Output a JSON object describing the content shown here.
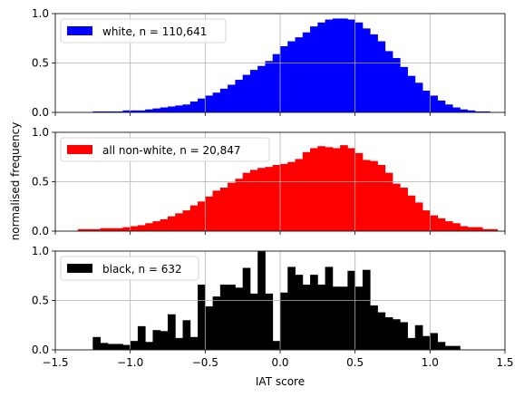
{
  "chart_data": [
    {
      "type": "bar",
      "legend": "white, n = 110,641",
      "color": "#0000ff",
      "legend_loc": "upper-left",
      "xlim": [
        -1.5,
        1.5
      ],
      "ylim": [
        0,
        1
      ],
      "grid": true,
      "bin_width": 0.05,
      "x": [
        -1.25,
        -1.2,
        -1.15,
        -1.1,
        -1.05,
        -1.0,
        -0.95,
        -0.9,
        -0.85,
        -0.8,
        -0.75,
        -0.7,
        -0.65,
        -0.6,
        -0.55,
        -0.5,
        -0.45,
        -0.4,
        -0.35,
        -0.3,
        -0.25,
        -0.2,
        -0.15,
        -0.1,
        -0.05,
        0.0,
        0.05,
        0.1,
        0.15,
        0.2,
        0.25,
        0.3,
        0.35,
        0.4,
        0.45,
        0.5,
        0.55,
        0.6,
        0.65,
        0.7,
        0.75,
        0.8,
        0.85,
        0.9,
        0.95,
        1.0,
        1.05,
        1.1,
        1.15,
        1.2,
        1.25,
        1.3,
        1.35,
        1.4,
        1.45
      ],
      "values": [
        0.01,
        0.01,
        0.01,
        0.01,
        0.02,
        0.02,
        0.02,
        0.03,
        0.04,
        0.05,
        0.06,
        0.07,
        0.08,
        0.11,
        0.14,
        0.17,
        0.2,
        0.24,
        0.28,
        0.33,
        0.38,
        0.43,
        0.47,
        0.52,
        0.59,
        0.67,
        0.72,
        0.76,
        0.81,
        0.87,
        0.91,
        0.94,
        0.95,
        0.95,
        0.94,
        0.91,
        0.85,
        0.79,
        0.72,
        0.62,
        0.55,
        0.46,
        0.37,
        0.3,
        0.22,
        0.17,
        0.12,
        0.08,
        0.05,
        0.03,
        0.02,
        0.01,
        0.01,
        0.0,
        0.0
      ]
    },
    {
      "type": "bar",
      "legend": "all non-white, n = 20,847",
      "color": "#ff0000",
      "legend_loc": "upper-left",
      "xlim": [
        -1.5,
        1.5
      ],
      "ylim": [
        0,
        1
      ],
      "grid": true,
      "bin_width": 0.05,
      "x": [
        -1.35,
        -1.3,
        -1.25,
        -1.2,
        -1.15,
        -1.1,
        -1.05,
        -1.0,
        -0.95,
        -0.9,
        -0.85,
        -0.8,
        -0.75,
        -0.7,
        -0.65,
        -0.6,
        -0.55,
        -0.5,
        -0.45,
        -0.4,
        -0.35,
        -0.3,
        -0.25,
        -0.2,
        -0.15,
        -0.1,
        -0.05,
        0.0,
        0.05,
        0.1,
        0.15,
        0.2,
        0.25,
        0.3,
        0.35,
        0.4,
        0.45,
        0.5,
        0.55,
        0.6,
        0.65,
        0.7,
        0.75,
        0.8,
        0.85,
        0.9,
        0.95,
        1.0,
        1.05,
        1.1,
        1.15,
        1.2,
        1.25,
        1.3,
        1.35,
        1.4
      ],
      "values": [
        0.02,
        0.02,
        0.02,
        0.03,
        0.03,
        0.03,
        0.04,
        0.05,
        0.06,
        0.08,
        0.1,
        0.12,
        0.15,
        0.18,
        0.21,
        0.26,
        0.3,
        0.35,
        0.41,
        0.44,
        0.49,
        0.53,
        0.59,
        0.62,
        0.64,
        0.65,
        0.67,
        0.68,
        0.7,
        0.73,
        0.8,
        0.84,
        0.86,
        0.85,
        0.84,
        0.87,
        0.84,
        0.79,
        0.72,
        0.71,
        0.67,
        0.59,
        0.48,
        0.44,
        0.36,
        0.29,
        0.21,
        0.16,
        0.13,
        0.1,
        0.08,
        0.05,
        0.04,
        0.04,
        0.02,
        0.02
      ]
    },
    {
      "type": "bar",
      "legend": "black, n = 632",
      "color": "#000000",
      "legend_loc": "upper-left",
      "xlim": [
        -1.5,
        1.5
      ],
      "ylim": [
        0,
        1
      ],
      "grid": true,
      "bin_width": 0.05,
      "x": [
        -1.25,
        -1.2,
        -1.15,
        -1.1,
        -1.05,
        -1.0,
        -0.95,
        -0.9,
        -0.85,
        -0.8,
        -0.75,
        -0.7,
        -0.65,
        -0.6,
        -0.55,
        -0.5,
        -0.45,
        -0.4,
        -0.35,
        -0.3,
        -0.25,
        -0.2,
        -0.15,
        -0.1,
        -0.05,
        0.0,
        0.05,
        0.1,
        0.15,
        0.2,
        0.25,
        0.3,
        0.35,
        0.4,
        0.45,
        0.5,
        0.55,
        0.6,
        0.65,
        0.7,
        0.75,
        0.8,
        0.85,
        0.9,
        0.95,
        1.0,
        1.05,
        1.1,
        1.15
      ],
      "values": [
        0.13,
        0.07,
        0.06,
        0.06,
        0.05,
        0.09,
        0.24,
        0.08,
        0.2,
        0.19,
        0.36,
        0.12,
        0.3,
        0.13,
        0.66,
        0.44,
        0.54,
        0.66,
        0.66,
        0.63,
        0.83,
        0.57,
        1.0,
        0.57,
        0.09,
        0.58,
        0.84,
        0.76,
        0.66,
        0.76,
        0.66,
        0.84,
        0.64,
        0.64,
        0.8,
        0.64,
        0.81,
        0.45,
        0.38,
        0.33,
        0.31,
        0.28,
        0.12,
        0.25,
        0.14,
        0.17,
        0.08,
        0.04,
        0.04
      ]
    }
  ],
  "axes": {
    "ylabel": "normalised frequency",
    "xlabel": "IAT score",
    "xticks": [
      -1.5,
      -1.0,
      -0.5,
      0.0,
      0.5,
      1.0,
      1.5
    ],
    "xtick_labels": [
      "−1.5",
      "−1.0",
      "−0.5",
      "0.0",
      "0.5",
      "1.0",
      "1.5"
    ],
    "yticks": [
      0.0,
      0.5,
      1.0
    ],
    "ytick_labels": [
      "0.0",
      "0.5",
      "1.0"
    ]
  }
}
